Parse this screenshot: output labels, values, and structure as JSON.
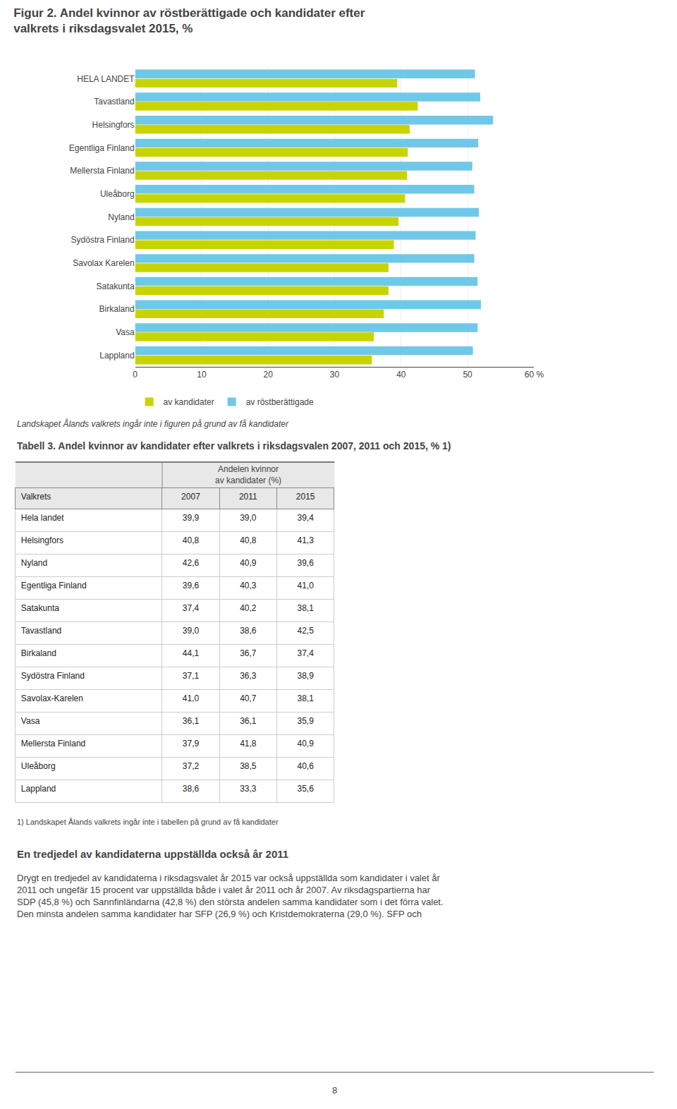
{
  "chart_data": [
    {
      "type": "bar",
      "orientation": "horizontal",
      "title": "Figur 2. Andel kvinnor av röstberättigade och kandidater efter\nvalkrets i riksdagsvalet 2015, %",
      "categories": [
        "HELA LANDET",
        "Tavastland",
        "Helsingfors",
        "Egentliga Finland",
        "Mellersta Finland",
        "Uleåborg",
        "Nyland",
        "Sydöstra Finland",
        "Savolax Karelen",
        "Satakunta",
        "Birkaland",
        "Vasa",
        "Lappland"
      ],
      "series": [
        {
          "name": "av kandidater",
          "color": "#c8d400",
          "values": [
            39.4,
            42.5,
            41.3,
            41.0,
            40.9,
            40.6,
            39.6,
            38.9,
            38.1,
            38.1,
            37.4,
            35.9,
            35.6
          ]
        },
        {
          "name": "av röstberättigade",
          "color": "#70c8e8",
          "values": [
            51.1,
            51.9,
            53.8,
            51.6,
            50.7,
            51.0,
            51.7,
            51.2,
            51.0,
            51.5,
            52.0,
            51.5,
            50.8
          ]
        }
      ],
      "xlim": [
        0,
        60
      ],
      "xticks": [
        0,
        10,
        20,
        30,
        40,
        50,
        {
          "value": 60,
          "label": "60 %"
        }
      ],
      "grid": true,
      "legend": "bottom",
      "annotations": [
        "Landskapet Ålands valkrets ingår inte i figuren på grund av få kandidater"
      ]
    },
    {
      "type": "table",
      "title": "Tabell 3. Andel kvinnor av kandidater efter valkrets i riksdagsvalen 2007, 2011 och 2015, % 1)",
      "row_header": "Valkrets",
      "column_group_header": "Andelen kvinnor\nav kandidater (%)",
      "categories": [
        "Hela landet",
        "Helsingfors",
        "Nyland",
        "Egentliga Finland",
        "Satakunta",
        "Tavastland",
        "Birkaland",
        "Sydöstra Finland",
        "Savolax-Karelen",
        "Vasa",
        "Mellersta Finland",
        "Uleåborg",
        "Lappland"
      ],
      "series": [
        {
          "name": "2007",
          "values": [
            39.9,
            40.8,
            42.6,
            39.6,
            37.4,
            39.0,
            44.1,
            37.1,
            41.0,
            36.1,
            37.9,
            37.2,
            38.6
          ],
          "value_labels": [
            "39,9",
            "40,8",
            "42,6",
            "39,6",
            "37,4",
            "39,0",
            "44,1",
            "37,1",
            "41,0",
            "36,1",
            "37,9",
            "37,2",
            "38,6"
          ]
        },
        {
          "name": "2011",
          "values": [
            39.0,
            40.8,
            40.9,
            40.3,
            40.2,
            38.6,
            36.7,
            36.3,
            40.7,
            36.1,
            41.8,
            38.5,
            33.3
          ],
          "value_labels": [
            "39,0",
            "40,8",
            "40,9",
            "40,3",
            "40,2",
            "38,6",
            "36,7",
            "36,3",
            "40,7",
            "36,1",
            "41,8",
            "38,5",
            "33,3"
          ]
        },
        {
          "name": "2015",
          "values": [
            39.4,
            41.3,
            39.6,
            41.0,
            38.1,
            42.5,
            37.4,
            38.9,
            38.1,
            35.9,
            40.9,
            40.6,
            35.6
          ],
          "value_labels": [
            "39,4",
            "41,3",
            "39,6",
            "41,0",
            "38,1",
            "42,5",
            "37,4",
            "38,9",
            "38,1",
            "35,9",
            "40,9",
            "40,6",
            "35,6"
          ]
        }
      ],
      "annotations": [
        "1) Landskapet Ålands valkrets ingår inte i tabellen på grund av få kandidater"
      ]
    }
  ],
  "page": {
    "section_title": "En tredjedel av kandidaterna uppställda också år 2011",
    "body_text": "Drygt en tredjedel av kandidaterna i riksdagsvalet år 2015 var också uppställda som kandidater i valet år\n2011 och ungefär 15 procent var uppställda både i valet år 2011 och år 2007. Av riksdagspartierna har\nSDP (45,8 %) och Sannfinländarna (42,8 %) den största andelen samma kandidater som i det förra valet.\nDen minsta andelen samma kandidater har SFP (26,9 %) och Kristdemokraterna (29,0 %). SFP och",
    "page_number": "8"
  }
}
